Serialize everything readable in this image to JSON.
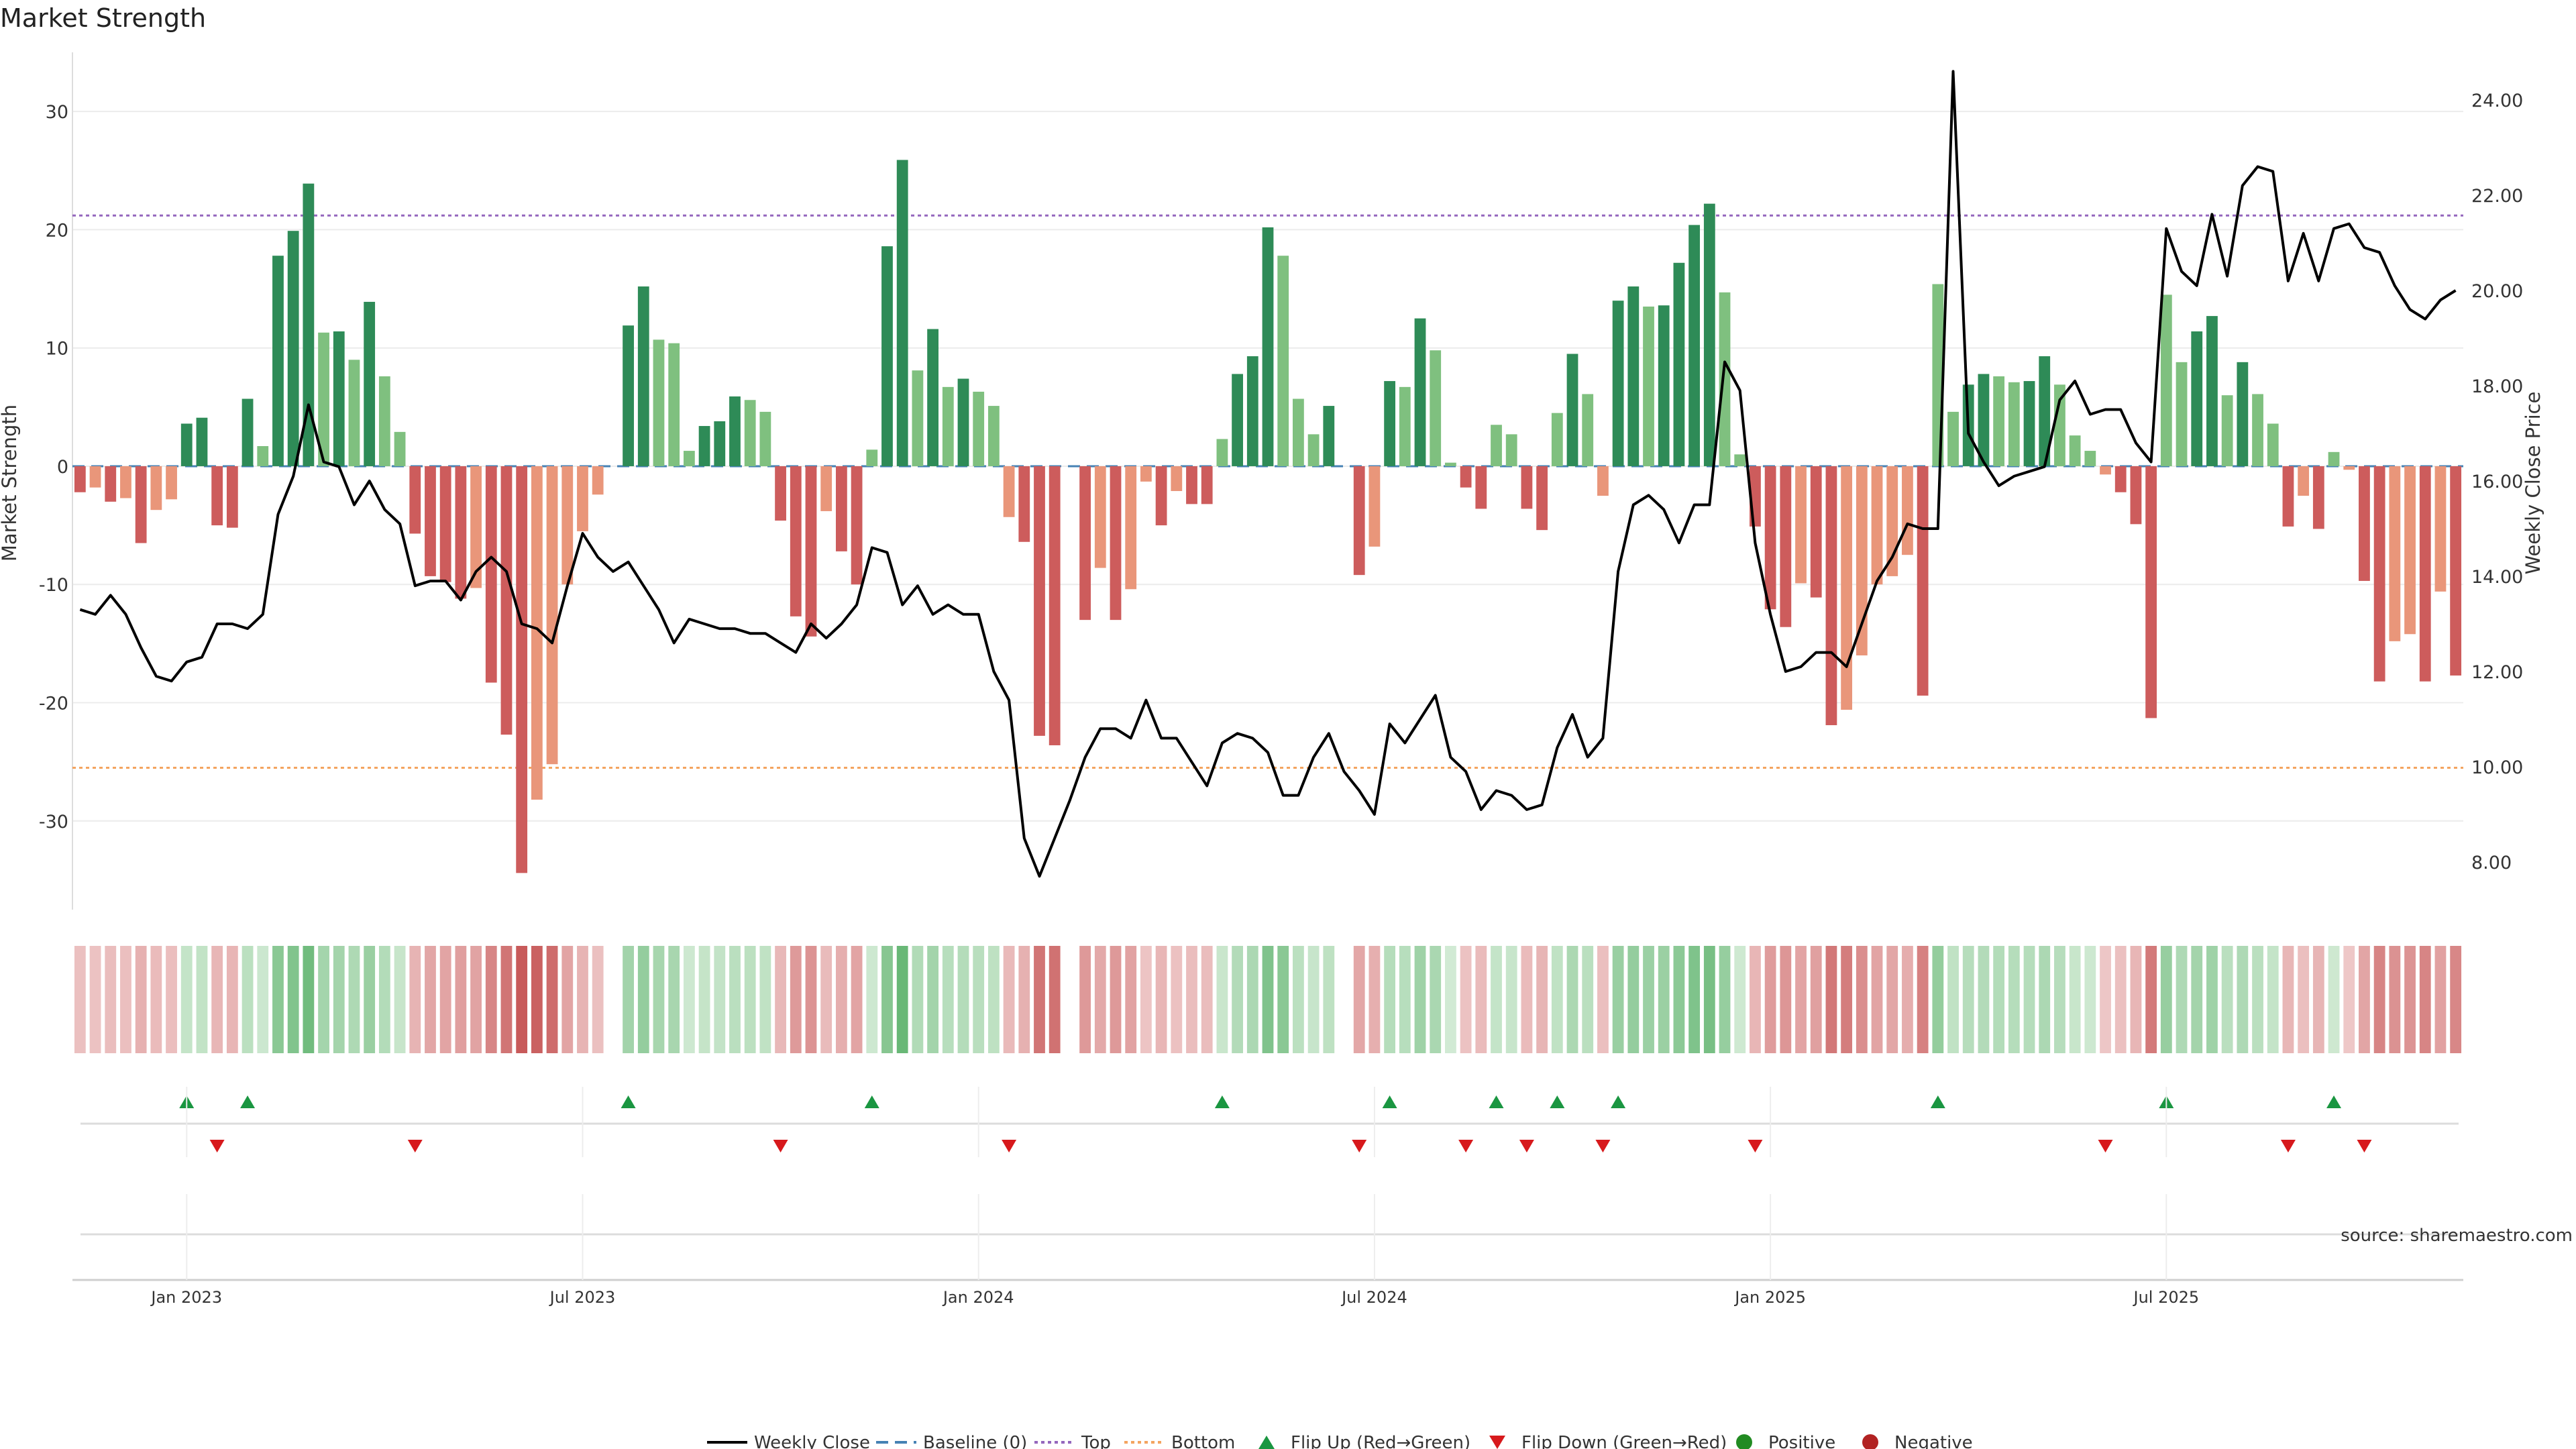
{
  "chart_data": {
    "type": "bar",
    "title": "Market Strength",
    "ylabel": "Market Strength",
    "y2label": "Weekly Close Price",
    "ylim": [
      -37.5,
      35
    ],
    "y_ticks": [
      -30,
      -20,
      -10,
      0,
      10,
      20,
      30
    ],
    "y2lim": [
      7.0,
      25.0
    ],
    "y2_ticks": [
      "8.00",
      "10.00",
      "12.00",
      "14.00",
      "16.00",
      "18.00",
      "20.00",
      "22.00",
      "24.00"
    ],
    "top_level": 21.2,
    "bottom_level": -25.5,
    "x_tick_labels": [
      "Jan 2023",
      "Jul 2023",
      "Jan 2024",
      "Jul 2024",
      "Jan 2025",
      "Jul 2025"
    ],
    "x_tick_weeks": [
      7,
      33,
      59,
      85,
      111,
      137
    ],
    "strength": [
      -2.2,
      -1.8,
      -3,
      -2.7,
      -6.5,
      -3.7,
      -2.8,
      3.6,
      4.1,
      -5,
      -5.2,
      5.7,
      1.7,
      17.8,
      19.9,
      23.9,
      11.3,
      11.4,
      9,
      13.9,
      7.6,
      2.9,
      -5.7,
      -9.3,
      -9.8,
      -11.2,
      -10.3,
      -18.3,
      -22.7,
      -34.4,
      -28.2,
      -25.2,
      -10,
      -5.5,
      -2.4,
      0,
      11.9,
      15.2,
      10.7,
      10.4,
      1.3,
      3.4,
      3.8,
      5.9,
      5.6,
      4.6,
      -4.6,
      -12.7,
      -14.4,
      -3.8,
      -7.2,
      -10,
      1.4,
      18.6,
      25.9,
      8.1,
      11.6,
      6.7,
      7.4,
      6.3,
      5.1,
      -4.3,
      -6.4,
      -22.8,
      -23.6,
      0,
      -13,
      -8.6,
      -13,
      -10.4,
      -1.3,
      -5,
      -2.1,
      -3.2,
      -3.2,
      2.3,
      7.8,
      9.3,
      20.2,
      17.8,
      5.7,
      2.7,
      5.1,
      0,
      -9.2,
      -6.8,
      7.2,
      6.7,
      12.5,
      9.8,
      0.3,
      -1.8,
      -3.6,
      3.5,
      2.7,
      -3.6,
      -5.4,
      4.5,
      9.5,
      6.1,
      -2.5,
      14,
      15.2,
      13.5,
      13.6,
      17.2,
      20.4,
      22.2,
      14.7,
      1,
      -5.1,
      -12.1,
      -13.6,
      -9.9,
      -11.1,
      -21.9,
      -20.6,
      -16,
      -10,
      -9.3,
      -7.5,
      -19.4,
      15.4,
      4.6,
      6.9,
      7.8,
      7.6,
      7.1,
      7.2,
      9.3,
      6.9,
      2.6,
      1.3,
      -0.7,
      -2.2,
      -4.9,
      -21.3,
      14.5,
      8.8,
      11.4,
      12.7,
      6,
      8.8,
      6.1,
      3.6,
      -5.1,
      -2.5,
      -5.3,
      1.2,
      -0.3,
      -9.7,
      -18.2,
      -14.8,
      -14.2,
      -18.2,
      -10.6,
      -17.7
    ],
    "close": [
      13.3,
      13.2,
      13.6,
      13.2,
      12.5,
      11.9,
      11.8,
      12.2,
      12.3,
      13,
      13,
      12.9,
      13.2,
      15.3,
      16.1,
      17.6,
      16.4,
      16.3,
      15.5,
      16,
      15.4,
      15.1,
      13.8,
      13.9,
      13.9,
      13.5,
      14.1,
      14.4,
      14.1,
      13,
      12.9,
      12.6,
      13.8,
      14.9,
      14.4,
      14.1,
      14.3,
      13.8,
      13.3,
      12.6,
      13.1,
      13,
      12.9,
      12.9,
      12.8,
      12.8,
      12.6,
      12.4,
      13,
      12.7,
      13,
      13.4,
      14.6,
      14.5,
      13.4,
      13.8,
      13.2,
      13.4,
      13.2,
      13.2,
      12,
      11.4,
      8.5,
      7.7,
      8.5,
      9.3,
      10.2,
      10.8,
      10.8,
      10.6,
      11.4,
      10.6,
      10.6,
      10.1,
      9.6,
      10.5,
      10.7,
      10.6,
      10.3,
      9.4,
      9.4,
      10.2,
      10.7,
      9.9,
      9.5,
      9,
      10.9,
      10.5,
      11,
      11.5,
      10.2,
      9.9,
      9.1,
      9.5,
      9.4,
      9.1,
      9.2,
      10.4,
      11.1,
      10.2,
      10.6,
      14.1,
      15.5,
      15.7,
      15.4,
      14.7,
      15.5,
      15.5,
      18.5,
      17.9,
      14.7,
      13.2,
      12,
      12.1,
      12.4,
      12.4,
      12.1,
      13,
      13.9,
      14.4,
      15.1,
      15,
      15,
      24.6,
      17,
      16.4,
      15.9,
      16.1,
      16.2,
      16.3,
      17.7,
      18.1,
      17.4,
      17.5,
      17.5,
      16.8,
      16.4,
      21.3,
      20.4,
      20.1,
      21.6,
      20.3,
      22.2,
      22.6,
      22.5,
      20.2,
      21.2,
      20.2,
      21.3,
      21.4,
      20.9,
      20.8,
      20.1,
      19.6,
      19.4,
      19.8,
      20
    ],
    "flip_up_weeks": [
      7,
      11,
      36,
      52,
      75,
      86,
      93,
      97,
      101,
      122,
      137,
      148
    ],
    "flip_down_weeks": [
      9,
      22,
      46,
      61,
      84,
      91,
      95,
      100,
      110,
      133,
      145,
      150
    ],
    "source": "source: sharemaestro.com",
    "legend": [
      "Weekly Close",
      "Baseline (0)",
      "Top",
      "Bottom",
      "Flip Up (Red→Green)",
      "Flip Down (Green→Red)",
      "Positive",
      "Negative"
    ],
    "colors": {
      "pos_strong": "#2e8b57",
      "pos_weak": "#7fc07f",
      "neg_strong": "#cd5c5c",
      "neg_weak": "#e9967a",
      "line": "#000000",
      "baseline": "#4682b4",
      "top": "#9467bd",
      "bottom": "#f4a460",
      "flip_up": "#1a9641",
      "flip_down": "#d7191c",
      "positive_dot": "#228b22",
      "negative_dot": "#b22222"
    }
  }
}
